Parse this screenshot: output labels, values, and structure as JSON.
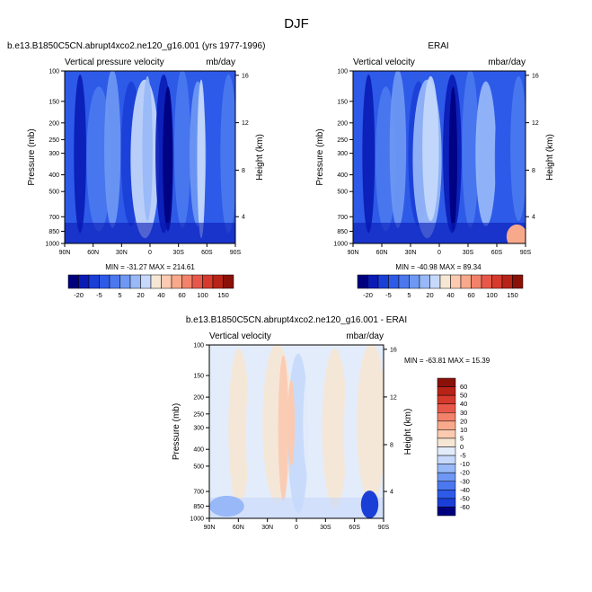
{
  "figure": {
    "title": "DJF"
  },
  "chart_data": [
    {
      "type": "heatmap",
      "title": "b.e13.B1850C5CN.abrupt4xco2.ne120_g16.001 (yrs 1977-1996)",
      "left_string": "Vertical pressure velocity",
      "right_string": "mb/day",
      "xlabel": "",
      "ylabel": "Pressure (mb)",
      "y2label": "Height (km)",
      "x_ticks": [
        "90N",
        "60N",
        "30N",
        "0",
        "30S",
        "60S",
        "90S"
      ],
      "y_ticks": [
        100,
        150,
        200,
        250,
        300,
        400,
        500,
        700,
        850,
        1000
      ],
      "y_range_mb": [
        1000,
        100
      ],
      "y2_ticks": [
        4,
        8,
        12,
        16
      ],
      "stats": "MIN = -31.27   MAX = 214.61",
      "colorbar": {
        "orientation": "horizontal",
        "labels": [
          "-20",
          "-5",
          "5",
          "20",
          "40",
          "60",
          "100",
          "150"
        ],
        "colors": [
          "#00007f",
          "#0a1bb5",
          "#1a3fd6",
          "#2e5ae8",
          "#4b78ef",
          "#6e98f3",
          "#98b8f7",
          "#c6d9fb",
          "#f6e6d4",
          "#fbcab1",
          "#f8a98c",
          "#f3826a",
          "#e8584a",
          "#d63a2c",
          "#b82318",
          "#8a1108"
        ]
      }
    },
    {
      "type": "heatmap",
      "title": "ERAI",
      "left_string": "Vertical velocity",
      "right_string": "mbar/day",
      "xlabel": "",
      "ylabel": "Pressure (mb)",
      "y2label": "Height (km)",
      "x_ticks": [
        "90N",
        "60N",
        "30N",
        "0",
        "30S",
        "60S",
        "90S"
      ],
      "y_ticks": [
        100,
        150,
        200,
        250,
        300,
        400,
        500,
        700,
        850,
        1000
      ],
      "y_range_mb": [
        1000,
        100
      ],
      "y2_ticks": [
        4,
        8,
        12,
        16
      ],
      "stats": "MIN = -40.98   MAX =  89.34",
      "colorbar": {
        "orientation": "horizontal",
        "labels": [
          "-20",
          "-5",
          "5",
          "20",
          "40",
          "60",
          "100",
          "150"
        ],
        "colors": [
          "#00007f",
          "#0a1bb5",
          "#1a3fd6",
          "#2e5ae8",
          "#4b78ef",
          "#6e98f3",
          "#98b8f7",
          "#c6d9fb",
          "#f6e6d4",
          "#fbcab1",
          "#f8a98c",
          "#f3826a",
          "#e8584a",
          "#d63a2c",
          "#b82318",
          "#8a1108"
        ]
      }
    },
    {
      "type": "heatmap",
      "title": "b.e13.B1850C5CN.abrupt4xco2.ne120_g16.001 - ERAI",
      "left_string": "Vertical velocity",
      "right_string": "mbar/day",
      "xlabel": "",
      "ylabel": "Pressure (mb)",
      "y2label": "Height (km)",
      "x_ticks": [
        "90N",
        "60N",
        "30N",
        "0",
        "30S",
        "60S",
        "90S"
      ],
      "y_ticks": [
        100,
        150,
        200,
        250,
        300,
        400,
        500,
        700,
        850,
        1000
      ],
      "y_range_mb": [
        1000,
        100
      ],
      "y2_ticks": [
        4,
        8,
        12,
        16
      ],
      "stats": "MIN = -63.81   MAX =  15.39",
      "colorbar": {
        "orientation": "vertical",
        "labels": [
          "60",
          "50",
          "40",
          "30",
          "20",
          "10",
          "5",
          "0",
          "-5",
          "-10",
          "-20",
          "-30",
          "-40",
          "-50",
          "-60"
        ],
        "colors": [
          "#8a1108",
          "#b82318",
          "#d63a2c",
          "#e8584a",
          "#f3826a",
          "#f8a98c",
          "#fbcab1",
          "#f6e6d4",
          "#e3ecfb",
          "#c6d9fb",
          "#98b8f7",
          "#6e98f3",
          "#4b78ef",
          "#2e5ae8",
          "#1a3fd6",
          "#00007f"
        ]
      }
    }
  ]
}
